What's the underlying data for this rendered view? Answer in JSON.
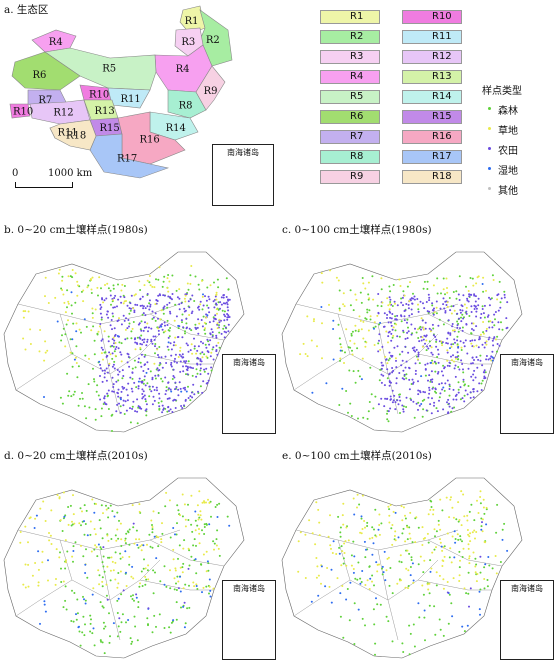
{
  "panel_a": {
    "title": "a. 生态区",
    "region_labels": [
      "R1",
      "R2",
      "R3",
      "R4",
      "R4",
      "R5",
      "R6",
      "R7",
      "R8",
      "R9",
      "R10",
      "R10",
      "R11",
      "R11",
      "R12",
      "R13",
      "R14",
      "R15",
      "R16",
      "R17",
      "R18"
    ],
    "scale_zero": "0",
    "scale_text": "1000 km",
    "inset_label": "南海诸岛"
  },
  "legend": {
    "regions": [
      {
        "label": "R1",
        "color": "#eef5a8"
      },
      {
        "label": "R2",
        "color": "#a7eda2"
      },
      {
        "label": "R3",
        "color": "#f6d0f2"
      },
      {
        "label": "R4",
        "color": "#f7a0f0"
      },
      {
        "label": "R5",
        "color": "#c8f2c6"
      },
      {
        "label": "R6",
        "color": "#a2dd70"
      },
      {
        "label": "R7",
        "color": "#c3b0ef"
      },
      {
        "label": "R8",
        "color": "#a7efd2"
      },
      {
        "label": "R9",
        "color": "#f7d1e3"
      },
      {
        "label": "R10",
        "color": "#f07ce0"
      },
      {
        "label": "R11",
        "color": "#bfeaf7"
      },
      {
        "label": "R12",
        "color": "#e7c6f7"
      },
      {
        "label": "R13",
        "color": "#d4f2a8"
      },
      {
        "label": "R14",
        "color": "#bff2ec"
      },
      {
        "label": "R15",
        "color": "#c18ae8"
      },
      {
        "label": "R16",
        "color": "#f6a8c3"
      },
      {
        "label": "R17",
        "color": "#a8c6f7"
      },
      {
        "label": "R18",
        "color": "#f7e7c6"
      }
    ],
    "type_title": "样点类型",
    "types": [
      {
        "label": "森林",
        "color": "#5fd13a"
      },
      {
        "label": "草地",
        "color": "#e8ea4a"
      },
      {
        "label": "农田",
        "color": "#6a4ce0"
      },
      {
        "label": "湿地",
        "color": "#2d6cf0"
      },
      {
        "label": "其他",
        "color": "#c0c0c0"
      }
    ]
  },
  "panels": [
    {
      "id": "b",
      "title": "b. 0~20 cm土壤样点(1980s)",
      "inset_label": "南海诸岛"
    },
    {
      "id": "c",
      "title": "c. 0~100 cm土壤样点(1980s)",
      "inset_label": "南海诸岛"
    },
    {
      "id": "d",
      "title": "d. 0~20 cm土壤样点(2010s)",
      "inset_label": "南海诸岛"
    },
    {
      "id": "e",
      "title": "e. 0~100 cm土壤样点(2010s)",
      "inset_label": "南海诸岛"
    }
  ]
}
